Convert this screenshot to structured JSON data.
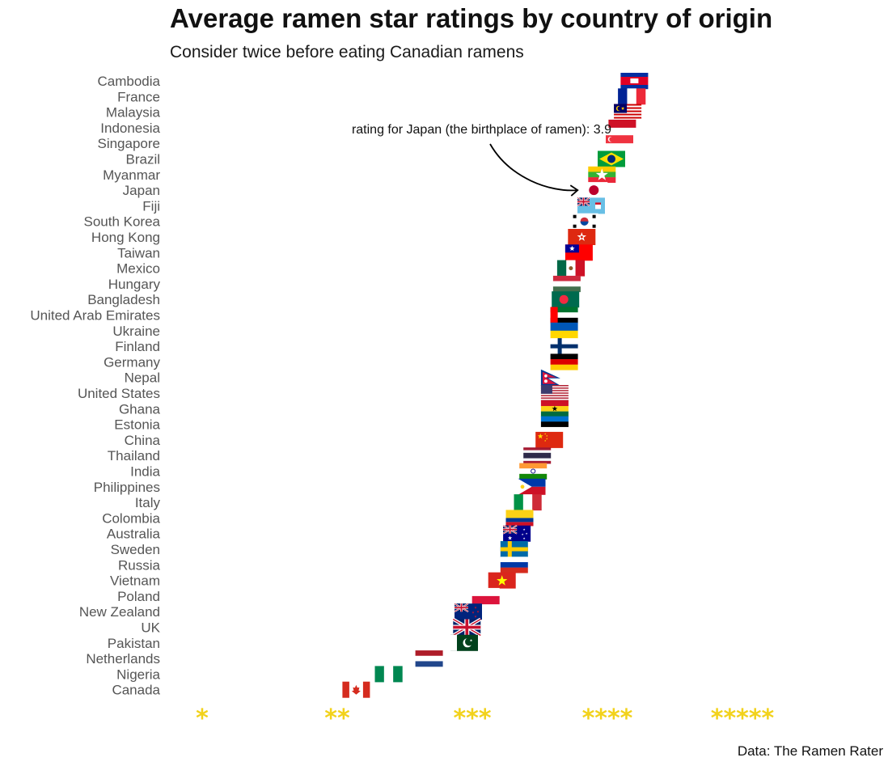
{
  "chart_data": {
    "type": "scatter",
    "title": "Average ramen star ratings by country of origin",
    "subtitle": "Consider twice before eating Canadian ramens",
    "caption": "Data: The Ramen Rater",
    "xlim": [
      1,
      5
    ],
    "x_ticks": [
      {
        "value": 1,
        "label": "*"
      },
      {
        "value": 2,
        "label": "**"
      },
      {
        "value": 3,
        "label": "***"
      },
      {
        "value": 4,
        "label": "****"
      },
      {
        "value": 5,
        "label": "*****"
      }
    ],
    "grid": false,
    "annotation": {
      "text": "rating for Japan (the birthplace of ramen): 3.9",
      "target": "Japan"
    },
    "points": [
      {
        "country": "Cambodia",
        "rating": 4.2,
        "flag": "cambodia"
      },
      {
        "country": "France",
        "rating": 4.18,
        "flag": "france"
      },
      {
        "country": "Malaysia",
        "rating": 4.15,
        "flag": "malaysia"
      },
      {
        "country": "Indonesia",
        "rating": 4.11,
        "flag": "indonesia"
      },
      {
        "country": "Singapore",
        "rating": 4.09,
        "flag": "singapore"
      },
      {
        "country": "Brazil",
        "rating": 4.03,
        "flag": "brazil"
      },
      {
        "country": "Myanmar",
        "rating": 3.96,
        "flag": "myanmar"
      },
      {
        "country": "Japan",
        "rating": 3.9,
        "flag": "japan"
      },
      {
        "country": "Fiji",
        "rating": 3.88,
        "flag": "fiji"
      },
      {
        "country": "South Korea",
        "rating": 3.83,
        "flag": "south_korea"
      },
      {
        "country": "Hong Kong",
        "rating": 3.81,
        "flag": "hong_kong"
      },
      {
        "country": "Taiwan",
        "rating": 3.79,
        "flag": "taiwan"
      },
      {
        "country": "Mexico",
        "rating": 3.73,
        "flag": "mexico"
      },
      {
        "country": "Hungary",
        "rating": 3.7,
        "flag": "hungary"
      },
      {
        "country": "Bangladesh",
        "rating": 3.69,
        "flag": "bangladesh"
      },
      {
        "country": "United Arab Emirates",
        "rating": 3.68,
        "flag": "uae"
      },
      {
        "country": "Ukraine",
        "rating": 3.68,
        "flag": "ukraine"
      },
      {
        "country": "Finland",
        "rating": 3.68,
        "flag": "finland"
      },
      {
        "country": "Germany",
        "rating": 3.68,
        "flag": "germany"
      },
      {
        "country": "Nepal",
        "rating": 3.61,
        "flag": "nepal"
      },
      {
        "country": "United States",
        "rating": 3.61,
        "flag": "usa"
      },
      {
        "country": "Ghana",
        "rating": 3.61,
        "flag": "ghana"
      },
      {
        "country": "Estonia",
        "rating": 3.61,
        "flag": "estonia"
      },
      {
        "country": "China",
        "rating": 3.57,
        "flag": "china"
      },
      {
        "country": "Thailand",
        "rating": 3.48,
        "flag": "thailand"
      },
      {
        "country": "India",
        "rating": 3.45,
        "flag": "india"
      },
      {
        "country": "Philippines",
        "rating": 3.44,
        "flag": "philippines"
      },
      {
        "country": "Italy",
        "rating": 3.41,
        "flag": "italy"
      },
      {
        "country": "Colombia",
        "rating": 3.35,
        "flag": "colombia"
      },
      {
        "country": "Australia",
        "rating": 3.33,
        "flag": "australia"
      },
      {
        "country": "Sweden",
        "rating": 3.31,
        "flag": "sweden"
      },
      {
        "country": "Russia",
        "rating": 3.31,
        "flag": "russia"
      },
      {
        "country": "Vietnam",
        "rating": 3.22,
        "flag": "vietnam"
      },
      {
        "country": "Poland",
        "rating": 3.1,
        "flag": "poland"
      },
      {
        "country": "New Zealand",
        "rating": 2.97,
        "flag": "new_zealand"
      },
      {
        "country": "UK",
        "rating": 2.96,
        "flag": "uk"
      },
      {
        "country": "Pakistan",
        "rating": 2.94,
        "flag": "pakistan"
      },
      {
        "country": "Netherlands",
        "rating": 2.68,
        "flag": "netherlands"
      },
      {
        "country": "Nigeria",
        "rating": 2.38,
        "flag": "nigeria"
      },
      {
        "country": "Canada",
        "rating": 2.14,
        "flag": "canada"
      }
    ]
  }
}
